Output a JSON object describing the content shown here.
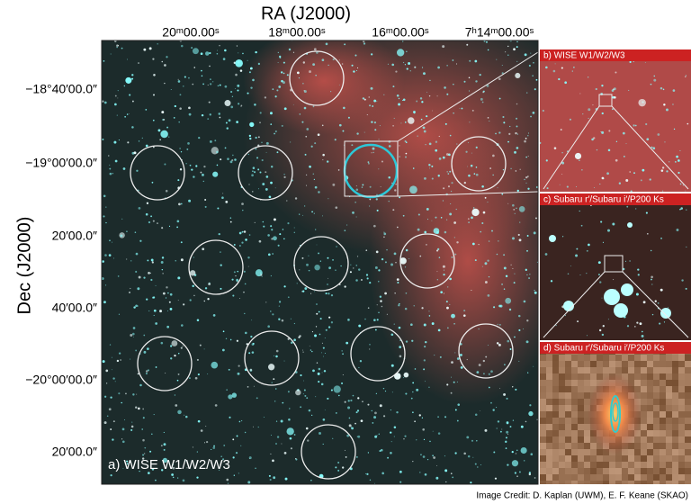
{
  "axes": {
    "x_title": "RA (J2000)",
    "y_title": "Dec (J2000)",
    "x_ticks": [
      "20ᵐ00.00ˢ",
      "18ᵐ00.00ˢ",
      "16ᵐ00.00ˢ",
      "7ʰ14ᵐ00.00ˢ"
    ],
    "y_ticks": [
      "−18°40′00.0″",
      "−19°00′00.0″",
      "20′00.0″",
      "40′00.0″",
      "−20°00′00.0″",
      "20′00.0″"
    ]
  },
  "panels": [
    {
      "label": "a) WISE W1/W2/W3"
    },
    {
      "label": "b) WISE W1/W2/W3"
    },
    {
      "label": "c) Subaru r′/Subaru i′/P200 Ks"
    },
    {
      "label": "d) Subaru r′/Subaru i′/P200 Ks"
    }
  ],
  "credit": "Image Credit: D. Kaplan (UWM), E. F. Keane (SKAO)"
}
